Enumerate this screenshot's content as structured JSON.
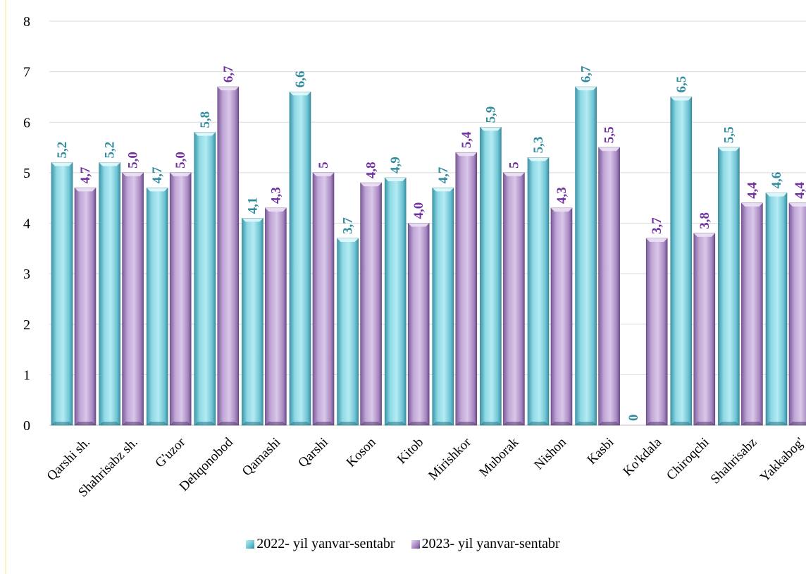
{
  "chart_data": {
    "type": "bar",
    "categories": [
      "Qarshi sh.",
      "Shahrisabz sh.",
      "G'uzor",
      "Dehqonobod",
      "Qamashi",
      "Qarshi",
      "Koson",
      "Kitob",
      "Mirishkor",
      "Muborak",
      "Nishon",
      "Kasbi",
      "Ko'kdala",
      "Chiroqchi",
      "Shahrisabz",
      "Yakkabog'"
    ],
    "series": [
      {
        "name": "2022- yil yanvar-sentabr",
        "values": [
          5.2,
          5.2,
          4.7,
          5.8,
          4.1,
          6.6,
          3.7,
          4.9,
          4.7,
          5.9,
          5.3,
          6.7,
          0,
          6.5,
          5.5,
          4.6
        ],
        "labels": [
          "5,2",
          "5,2",
          "4,7",
          "5,8",
          "4,1",
          "6,6",
          "3,7",
          "4,9",
          "4,7",
          "5,9",
          "5,3",
          "6,7",
          "0",
          "6,5",
          "5,5",
          "4,6"
        ],
        "label_color": "#2f8c9e"
      },
      {
        "name": "2023- yil yanvar-sentabr",
        "values": [
          4.7,
          5.0,
          5.0,
          6.7,
          4.3,
          5.0,
          4.8,
          4.0,
          5.4,
          5.0,
          4.3,
          5.5,
          3.7,
          3.8,
          4.4,
          4.4
        ],
        "labels": [
          "4,7",
          "5,0",
          "5,0",
          "6,7",
          "4,3",
          "5",
          "4,8",
          "4,0",
          "5,4",
          "5",
          "4,3",
          "5,5",
          "3,7",
          "3,8",
          "4,4",
          "4,4"
        ],
        "label_color": "#7030a0"
      }
    ],
    "title": "",
    "xlabel": "",
    "ylabel": "",
    "ylim": [
      0,
      8
    ],
    "yticks": [
      "0",
      "1",
      "2",
      "3",
      "4",
      "5",
      "6",
      "7",
      "8"
    ],
    "grid": true,
    "legend_position": "bottom"
  }
}
